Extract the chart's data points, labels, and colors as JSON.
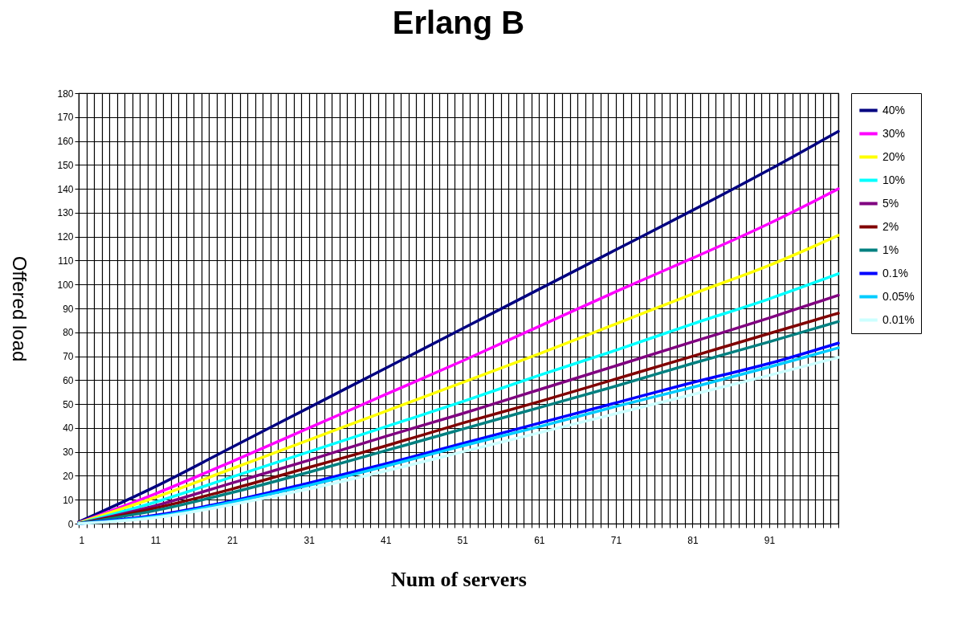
{
  "chart_data": {
    "type": "line",
    "title": "Erlang B",
    "xlabel": "Num of servers",
    "ylabel": "Offered load",
    "legend": "right",
    "grid": true,
    "xlim": [
      1,
      100
    ],
    "ylim": [
      0,
      180
    ],
    "yticks": [
      0,
      10,
      20,
      30,
      40,
      50,
      60,
      70,
      80,
      90,
      100,
      110,
      120,
      130,
      140,
      150,
      160,
      170,
      180
    ],
    "xticks": [
      1,
      {
        "value": 2,
        "label": null
      },
      {
        "value": 3,
        "label": null
      },
      {
        "value": 4,
        "label": null
      },
      {
        "value": 5,
        "label": null
      },
      {
        "value": 6,
        "label": null
      },
      {
        "value": 7,
        "label": null
      },
      {
        "value": 8,
        "label": null
      },
      {
        "value": 9,
        "label": null
      },
      {
        "value": 10,
        "label": null
      },
      11,
      {
        "value": 12,
        "label": null
      },
      {
        "value": 13,
        "label": null
      },
      {
        "value": 14,
        "label": null
      },
      {
        "value": 15,
        "label": null
      },
      {
        "value": 16,
        "label": null
      },
      {
        "value": 17,
        "label": null
      },
      {
        "value": 18,
        "label": null
      },
      {
        "value": 19,
        "label": null
      },
      {
        "value": 20,
        "label": null
      },
      21,
      {
        "value": 22,
        "label": null
      },
      {
        "value": 23,
        "label": null
      },
      {
        "value": 24,
        "label": null
      },
      {
        "value": 25,
        "label": null
      },
      {
        "value": 26,
        "label": null
      },
      {
        "value": 27,
        "label": null
      },
      {
        "value": 28,
        "label": null
      },
      {
        "value": 29,
        "label": null
      },
      {
        "value": 30,
        "label": null
      },
      31,
      {
        "value": 32,
        "label": null
      },
      {
        "value": 33,
        "label": null
      },
      {
        "value": 34,
        "label": null
      },
      {
        "value": 35,
        "label": null
      },
      {
        "value": 36,
        "label": null
      },
      {
        "value": 37,
        "label": null
      },
      {
        "value": 38,
        "label": null
      },
      {
        "value": 39,
        "label": null
      },
      {
        "value": 40,
        "label": null
      },
      41,
      {
        "value": 42,
        "label": null
      },
      {
        "value": 43,
        "label": null
      },
      {
        "value": 44,
        "label": null
      },
      {
        "value": 45,
        "label": null
      },
      {
        "value": 46,
        "label": null
      },
      {
        "value": 47,
        "label": null
      },
      {
        "value": 48,
        "label": null
      },
      {
        "value": 49,
        "label": null
      },
      {
        "value": 50,
        "label": null
      },
      51,
      {
        "value": 52,
        "label": null
      },
      {
        "value": 53,
        "label": null
      },
      {
        "value": 54,
        "label": null
      },
      {
        "value": 55,
        "label": null
      },
      {
        "value": 56,
        "label": null
      },
      {
        "value": 57,
        "label": null
      },
      {
        "value": 58,
        "label": null
      },
      {
        "value": 59,
        "label": null
      },
      {
        "value": 60,
        "label": null
      },
      61,
      {
        "value": 62,
        "label": null
      },
      {
        "value": 63,
        "label": null
      },
      {
        "value": 64,
        "label": null
      },
      {
        "value": 65,
        "label": null
      },
      {
        "value": 66,
        "label": null
      },
      {
        "value": 67,
        "label": null
      },
      {
        "value": 68,
        "label": null
      },
      {
        "value": 69,
        "label": null
      },
      {
        "value": 70,
        "label": null
      },
      71,
      {
        "value": 72,
        "label": null
      },
      {
        "value": 73,
        "label": null
      },
      {
        "value": 74,
        "label": null
      },
      {
        "value": 75,
        "label": null
      },
      {
        "value": 76,
        "label": null
      },
      {
        "value": 77,
        "label": null
      },
      {
        "value": 78,
        "label": null
      },
      {
        "value": 79,
        "label": null
      },
      {
        "value": 80,
        "label": null
      },
      81,
      {
        "value": 82,
        "label": null
      },
      {
        "value": 83,
        "label": null
      },
      {
        "value": 84,
        "label": null
      },
      {
        "value": 85,
        "label": null
      },
      {
        "value": 86,
        "label": null
      },
      {
        "value": 87,
        "label": null
      },
      {
        "value": 88,
        "label": null
      },
      {
        "value": 89,
        "label": null
      },
      {
        "value": 90,
        "label": null
      },
      91,
      {
        "value": 92,
        "label": null
      },
      {
        "value": 93,
        "label": null
      },
      {
        "value": 94,
        "label": null
      },
      {
        "value": 95,
        "label": null
      },
      {
        "value": 96,
        "label": null
      },
      {
        "value": 97,
        "label": null
      },
      {
        "value": 98,
        "label": null
      },
      {
        "value": 99,
        "label": null
      },
      {
        "value": 100,
        "label": null
      }
    ],
    "x": [
      1,
      11,
      21,
      31,
      41,
      51,
      61,
      71,
      81,
      91,
      100
    ],
    "series": [
      {
        "name": "40%",
        "color": "#000080",
        "values": [
          0.7,
          15.5,
          32,
          48.5,
          65,
          81.5,
          98,
          114.5,
          131,
          148,
          164
        ]
      },
      {
        "name": "30%",
        "color": "#ff00ff",
        "values": [
          0.4,
          12.5,
          26,
          40,
          54,
          68,
          82.5,
          97,
          111,
          125.5,
          140
        ]
      },
      {
        "name": "20%",
        "color": "#ffff00",
        "values": [
          0.3,
          11,
          23,
          35,
          47,
          59,
          71,
          83.5,
          96,
          108,
          120.5
        ]
      },
      {
        "name": "10%",
        "color": "#00ffff",
        "values": [
          0.1,
          9,
          19.5,
          30,
          40.5,
          51,
          62,
          72.5,
          83.5,
          94,
          104.5
        ]
      },
      {
        "name": "5%",
        "color": "#800080",
        "values": [
          0,
          7.5,
          17,
          26.5,
          36.5,
          46,
          56,
          66,
          76,
          86,
          95.5
        ]
      },
      {
        "name": "2%",
        "color": "#800000",
        "values": [
          0,
          6.5,
          14.5,
          23.5,
          32.5,
          42,
          51,
          60.5,
          70,
          79.5,
          88
        ]
      },
      {
        "name": "1%",
        "color": "#008080",
        "values": [
          0,
          5.5,
          13,
          21.5,
          30.5,
          39.5,
          48.5,
          57.5,
          67,
          76,
          84.5
        ]
      },
      {
        "name": "0.1%",
        "color": "#0000ff",
        "values": [
          0,
          3.5,
          9.5,
          17,
          25,
          33.5,
          42,
          50.5,
          59,
          67,
          75.5
        ]
      },
      {
        "name": "0.05%",
        "color": "#00ccff",
        "values": [
          0,
          3,
          9,
          16,
          24,
          32.5,
          40.5,
          49,
          57,
          65.5,
          73.5
        ]
      },
      {
        "name": "0.01%",
        "color": "#ccffff",
        "values": [
          0,
          2.5,
          8,
          14.5,
          22,
          30,
          38,
          46,
          54,
          62,
          69.5
        ]
      }
    ]
  }
}
